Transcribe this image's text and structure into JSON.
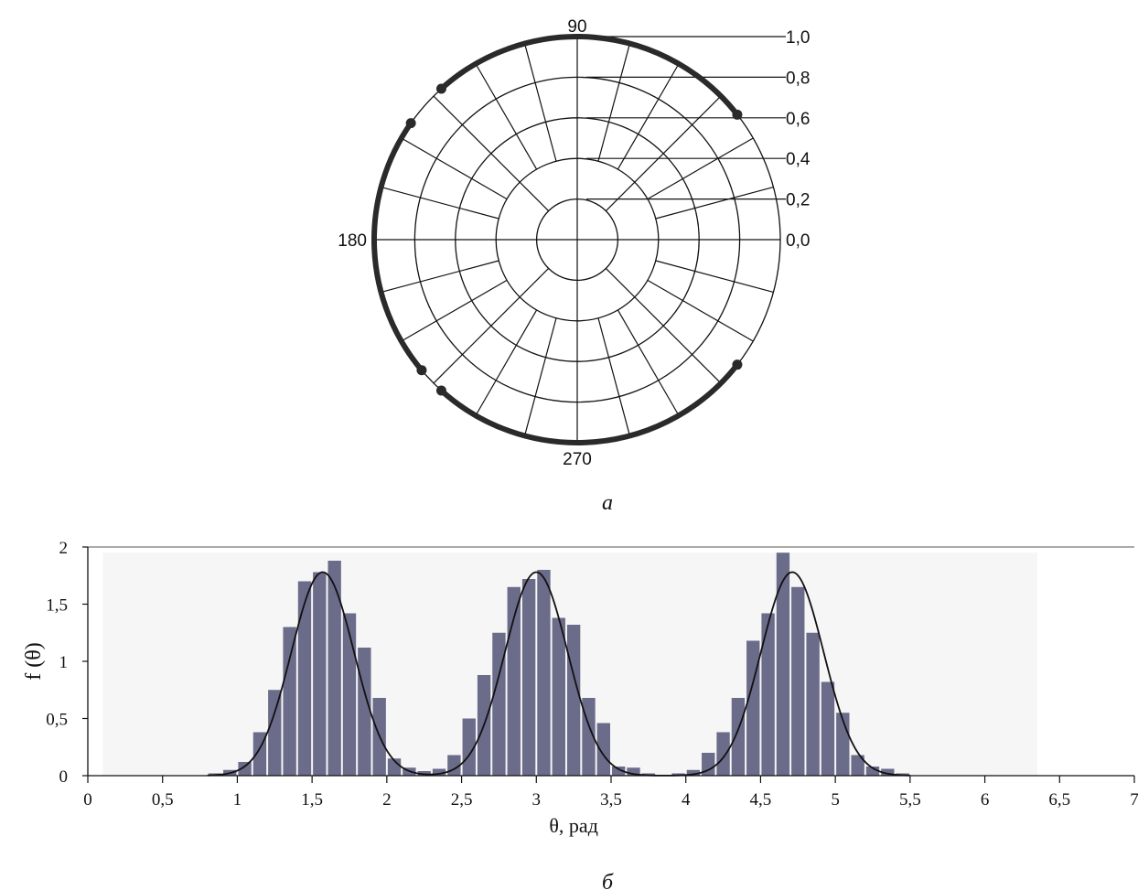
{
  "chart_data": [
    {
      "type": "polar",
      "angle_labels": [
        "90",
        "180",
        "270"
      ],
      "radius_labels": [
        "1,0",
        "0,8",
        "0,6",
        "0,4",
        "0,2",
        "0,0"
      ],
      "radial_ticks": [
        1.0,
        0.8,
        0.6,
        0.4,
        0.2,
        0.0
      ],
      "rlim": [
        0,
        1
      ],
      "series": [
        {
          "r": 1.0,
          "arcs_deg": [
            [
              38,
              132
            ],
            [
              145,
              220
            ],
            [
              228,
              322
            ]
          ]
        }
      ],
      "dots_deg": [
        38,
        132,
        145,
        220,
        228,
        322
      ],
      "caption": "а"
    },
    {
      "type": "bar",
      "xlabel": "θ, рад",
      "ylabel": "f (θ)",
      "xlim": [
        0,
        7
      ],
      "ylim": [
        0,
        2
      ],
      "x_ticks": [
        "0",
        "0,5",
        "1",
        "1,5",
        "2",
        "2,5",
        "3",
        "3,5",
        "4",
        "4,5",
        "5",
        "5,5",
        "6",
        "6,5",
        "7"
      ],
      "y_ticks": [
        "0",
        "0,5",
        "1",
        "1,5",
        "2"
      ],
      "bin_width": 0.1,
      "bin_starts": [
        0.8,
        0.9,
        1.0,
        1.1,
        1.2,
        1.3,
        1.4,
        1.5,
        1.6,
        1.7,
        1.8,
        1.9,
        2.0,
        2.1,
        2.2,
        2.3,
        2.4,
        2.5,
        2.6,
        2.7,
        2.8,
        2.9,
        3.0,
        3.1,
        3.2,
        3.3,
        3.4,
        3.5,
        3.6,
        3.7,
        3.8,
        3.9,
        4.0,
        4.1,
        4.2,
        4.3,
        4.4,
        4.5,
        4.6,
        4.7,
        4.8,
        4.9,
        5.0,
        5.1,
        5.2,
        5.3,
        5.4
      ],
      "values": [
        0.02,
        0.05,
        0.12,
        0.38,
        0.75,
        1.3,
        1.7,
        1.78,
        1.88,
        1.42,
        1.12,
        0.68,
        0.15,
        0.07,
        0.04,
        0.06,
        0.18,
        0.5,
        0.88,
        1.25,
        1.65,
        1.72,
        1.8,
        1.38,
        1.32,
        0.68,
        0.46,
        0.08,
        0.07,
        0.02,
        0.0,
        0.02,
        0.05,
        0.2,
        0.38,
        0.68,
        1.18,
        1.42,
        1.95,
        1.65,
        1.25,
        0.82,
        0.55,
        0.18,
        0.08,
        0.06,
        0.02
      ],
      "bar_color": "#6b6b8a",
      "curve": {
        "type": "periodic-gaussian",
        "peaks": [
          1.571,
          3.0,
          4.712
        ],
        "amplitude": 1.78,
        "sigma": 0.21,
        "range": [
          0.8,
          5.5
        ]
      },
      "caption": "б"
    }
  ]
}
